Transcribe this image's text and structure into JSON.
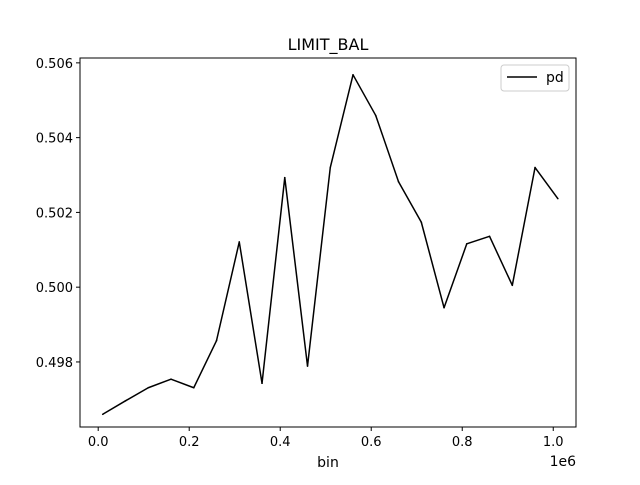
{
  "chart_data": {
    "type": "line",
    "title": "LIMIT_BAL",
    "xlabel": "bin",
    "ylabel": "",
    "x_offset_label": "1e6",
    "xlim": [
      -40000,
      1050000
    ],
    "ylim": [
      0.49626,
      0.50613
    ],
    "x_ticks": [
      0,
      200000,
      400000,
      600000,
      800000,
      1000000
    ],
    "x_tick_labels": [
      "0.0",
      "0.2",
      "0.4",
      "0.6",
      "0.8",
      "1.0"
    ],
    "y_ticks": [
      0.498,
      0.5,
      0.502,
      0.504,
      0.506
    ],
    "y_tick_labels": [
      "0.498",
      "0.500",
      "0.502",
      "0.504",
      "0.506"
    ],
    "grid": false,
    "legend_position": "upper right",
    "series": [
      {
        "name": "pd",
        "color": "#000000",
        "x": [
          10000,
          60000,
          110000,
          160000,
          210000,
          260000,
          310000,
          360000,
          410000,
          460000,
          510000,
          560000,
          610000,
          660000,
          710000,
          760000,
          810000,
          860000,
          910000,
          960000,
          1010000
        ],
        "y": [
          0.4966,
          0.49696,
          0.49731,
          0.49754,
          0.49731,
          0.49857,
          0.50121,
          0.49743,
          0.50293,
          0.49789,
          0.5032,
          0.50568,
          0.50459,
          0.50282,
          0.50174,
          0.49945,
          0.50116,
          0.50136,
          0.50005,
          0.5032,
          0.50237
        ]
      }
    ]
  }
}
